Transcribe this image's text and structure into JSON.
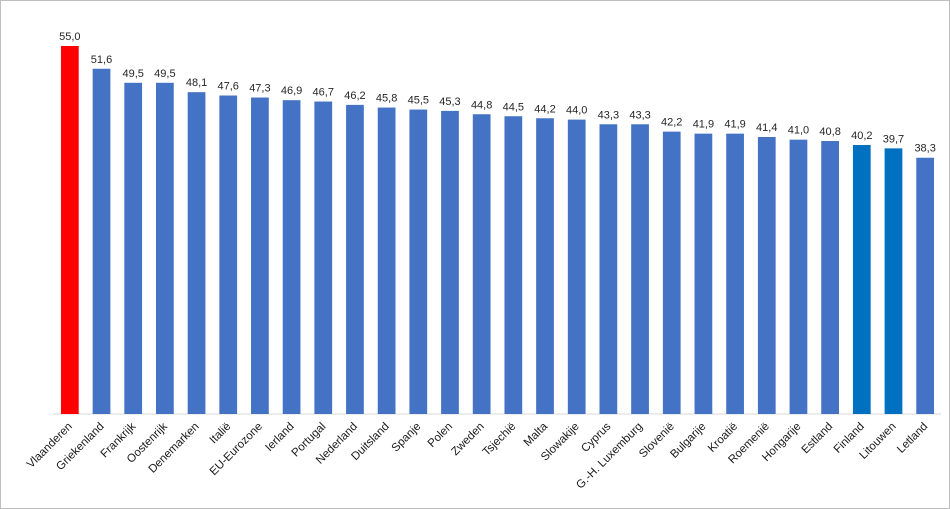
{
  "chart_data": {
    "type": "bar",
    "categories": [
      "Vlaanderen",
      "Griekenland",
      "Frankrijk",
      "Oostenrijk",
      "Denemarken",
      "Italië",
      "EU-Eurozone",
      "Ierland",
      "Portugal",
      "Nederland",
      "Duitsland",
      "Spanje",
      "Polen",
      "Zweden",
      "Tsjechië",
      "Malta",
      "Slowakije",
      "Cyprus",
      "G.-H. Luxemburg",
      "Slovenië",
      "Bulgarije",
      "Kroatië",
      "Roemenië",
      "Hongarije",
      "Estland",
      "Finland",
      "Litouwen",
      "Letland"
    ],
    "values": [
      55.0,
      51.6,
      49.5,
      49.5,
      48.1,
      47.6,
      47.3,
      46.9,
      46.7,
      46.2,
      45.8,
      45.5,
      45.3,
      44.8,
      44.5,
      44.2,
      44.0,
      43.3,
      43.3,
      42.2,
      41.9,
      41.9,
      41.4,
      41.0,
      40.8,
      40.2,
      39.7,
      38.3
    ],
    "value_labels": [
      "55,0",
      "51,6",
      "49,5",
      "49,5",
      "48,1",
      "47,6",
      "47,3",
      "46,9",
      "46,7",
      "46,2",
      "45,8",
      "45,5",
      "45,3",
      "44,8",
      "44,5",
      "44,2",
      "44,0",
      "43,3",
      "43,3",
      "42,2",
      "41,9",
      "41,9",
      "41,4",
      "41,0",
      "40,8",
      "40,2",
      "39,7",
      "38,3"
    ],
    "bar_colors": [
      "#ff0000",
      "#4472c4",
      "#4472c4",
      "#4472c4",
      "#4472c4",
      "#4472c4",
      "#4472c4",
      "#4472c4",
      "#4472c4",
      "#4472c4",
      "#4472c4",
      "#4472c4",
      "#4472c4",
      "#4472c4",
      "#4472c4",
      "#4472c4",
      "#4472c4",
      "#4472c4",
      "#4472c4",
      "#4472c4",
      "#4472c4",
      "#4472c4",
      "#4472c4",
      "#4472c4",
      "#4472c4",
      "#0070c0",
      "#0070c0",
      "#4472c4"
    ],
    "title": "",
    "xlabel": "",
    "ylabel": "",
    "ylim": [
      0,
      55
    ],
    "grid": false,
    "legend": "none"
  }
}
